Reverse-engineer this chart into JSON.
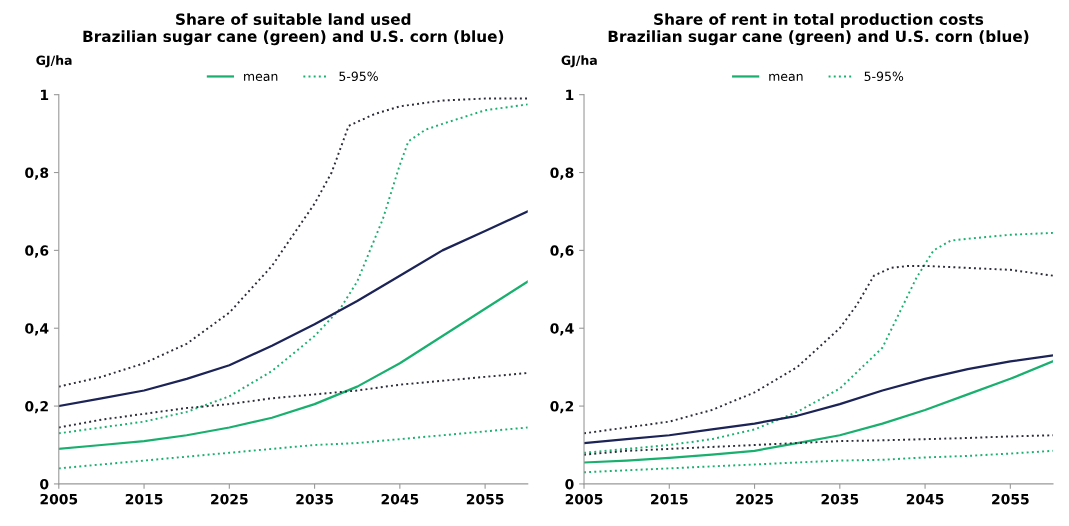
{
  "chart_data": [
    {
      "type": "line",
      "title": "Share of suitable land used\nBrazilian sugar cane (green) and U.S. corn (blue)",
      "ylabel": "GJ/ha",
      "xlim": [
        2005,
        2060
      ],
      "xticks": [
        2005,
        2015,
        2025,
        2035,
        2045,
        2055
      ],
      "ylim": [
        0,
        1
      ],
      "yticks": [
        0,
        {
          "value": 0.2,
          "label": "0,2"
        },
        {
          "value": 0.4,
          "label": "0,4"
        },
        {
          "value": 0.6,
          "label": "0,6"
        },
        {
          "value": 0.8,
          "label": "0,8"
        },
        1
      ],
      "grid": false,
      "legend": "top",
      "series": [
        {
          "name": "mean",
          "color": "#19b06f",
          "line_style": "solid",
          "x": [
            2005,
            2010,
            2015,
            2020,
            2025,
            2030,
            2035,
            2040,
            2045,
            2050,
            2055,
            2060
          ],
          "values": [
            0.09,
            0.1,
            0.11,
            0.125,
            0.145,
            0.17,
            0.205,
            0.25,
            0.31,
            0.38,
            0.45,
            0.52
          ]
        },
        {
          "name": "5-95%",
          "color": "#19b06f",
          "line_style": "dotted",
          "x": [
            2005,
            2010,
            2015,
            2020,
            2025,
            2030,
            2035,
            2038,
            2040,
            2043,
            2045,
            2046,
            2048,
            2050,
            2055,
            2060
          ],
          "values": [
            0.13,
            0.145,
            0.16,
            0.185,
            0.225,
            0.29,
            0.38,
            0.45,
            0.52,
            0.68,
            0.82,
            0.88,
            0.91,
            0.925,
            0.96,
            0.975
          ]
        },
        {
          "color": "#19b06f",
          "line_style": "dotted",
          "x": [
            2005,
            2010,
            2015,
            2020,
            2025,
            2030,
            2035,
            2040,
            2045,
            2050,
            2055,
            2060
          ],
          "values": [
            0.04,
            0.05,
            0.06,
            0.07,
            0.08,
            0.09,
            0.1,
            0.105,
            0.115,
            0.125,
            0.135,
            0.145
          ]
        },
        {
          "color": "#1c2457",
          "line_style": "solid",
          "x": [
            2005,
            2010,
            2015,
            2020,
            2025,
            2030,
            2035,
            2040,
            2045,
            2050,
            2055,
            2060
          ],
          "values": [
            0.2,
            0.22,
            0.24,
            0.27,
            0.305,
            0.355,
            0.41,
            0.47,
            0.535,
            0.6,
            0.65,
            0.7
          ]
        },
        {
          "color": "#2b2b3a",
          "line_style": "dotted",
          "x": [
            2005,
            2010,
            2015,
            2020,
            2025,
            2030,
            2035,
            2037,
            2039,
            2042,
            2045,
            2050,
            2055,
            2060
          ],
          "values": [
            0.25,
            0.275,
            0.31,
            0.36,
            0.44,
            0.56,
            0.72,
            0.8,
            0.92,
            0.95,
            0.97,
            0.985,
            0.99,
            0.99
          ]
        },
        {
          "color": "#2b2b3a",
          "line_style": "dotted",
          "x": [
            2005,
            2010,
            2015,
            2020,
            2025,
            2030,
            2035,
            2040,
            2045,
            2050,
            2055,
            2060
          ],
          "values": [
            0.145,
            0.165,
            0.18,
            0.195,
            0.205,
            0.22,
            0.23,
            0.24,
            0.255,
            0.265,
            0.275,
            0.285
          ]
        }
      ]
    },
    {
      "type": "line",
      "title": "Share of rent in total production costs\nBrazilian sugar cane (green) and U.S. corn (blue)",
      "ylabel": "GJ/ha",
      "xlim": [
        2005,
        2060
      ],
      "xticks": [
        2005,
        2015,
        2025,
        2035,
        2045,
        2055
      ],
      "ylim": [
        0,
        1
      ],
      "yticks": [
        0,
        {
          "value": 0.2,
          "label": "0,2"
        },
        {
          "value": 0.4,
          "label": "0,4"
        },
        {
          "value": 0.6,
          "label": "0,6"
        },
        {
          "value": 0.8,
          "label": "0,8"
        },
        1
      ],
      "grid": false,
      "legend": "top",
      "series": [
        {
          "name": "mean",
          "color": "#19b06f",
          "line_style": "solid",
          "x": [
            2005,
            2010,
            2015,
            2020,
            2025,
            2030,
            2035,
            2040,
            2045,
            2050,
            2055,
            2060
          ],
          "values": [
            0.055,
            0.06,
            0.067,
            0.075,
            0.085,
            0.105,
            0.125,
            0.155,
            0.19,
            0.23,
            0.27,
            0.315
          ]
        },
        {
          "name": "5-95%",
          "color": "#19b06f",
          "line_style": "dotted",
          "x": [
            2005,
            2010,
            2015,
            2020,
            2025,
            2030,
            2035,
            2040,
            2042,
            2044,
            2046,
            2048,
            2050,
            2055,
            2060
          ],
          "values": [
            0.08,
            0.09,
            0.1,
            0.115,
            0.14,
            0.185,
            0.245,
            0.35,
            0.44,
            0.53,
            0.6,
            0.625,
            0.63,
            0.64,
            0.645
          ]
        },
        {
          "color": "#19b06f",
          "line_style": "dotted",
          "x": [
            2005,
            2010,
            2015,
            2020,
            2025,
            2030,
            2035,
            2040,
            2045,
            2050,
            2055,
            2060
          ],
          "values": [
            0.03,
            0.035,
            0.04,
            0.045,
            0.05,
            0.055,
            0.06,
            0.062,
            0.068,
            0.072,
            0.078,
            0.085
          ]
        },
        {
          "color": "#1c2457",
          "line_style": "solid",
          "x": [
            2005,
            2010,
            2015,
            2020,
            2025,
            2030,
            2035,
            2040,
            2045,
            2050,
            2055,
            2060
          ],
          "values": [
            0.105,
            0.115,
            0.125,
            0.14,
            0.155,
            0.175,
            0.205,
            0.24,
            0.27,
            0.295,
            0.315,
            0.33
          ]
        },
        {
          "color": "#2b2b3a",
          "line_style": "dotted",
          "x": [
            2005,
            2010,
            2015,
            2020,
            2025,
            2030,
            2035,
            2037,
            2039,
            2041,
            2043,
            2045,
            2050,
            2055,
            2060
          ],
          "values": [
            0.13,
            0.145,
            0.16,
            0.19,
            0.235,
            0.3,
            0.4,
            0.46,
            0.535,
            0.555,
            0.56,
            0.56,
            0.555,
            0.55,
            0.535
          ]
        },
        {
          "color": "#2b2b3a",
          "line_style": "dotted",
          "x": [
            2005,
            2010,
            2015,
            2020,
            2025,
            2030,
            2035,
            2040,
            2045,
            2050,
            2055,
            2060
          ],
          "values": [
            0.075,
            0.085,
            0.09,
            0.095,
            0.1,
            0.105,
            0.11,
            0.112,
            0.115,
            0.118,
            0.122,
            0.125
          ]
        }
      ]
    }
  ]
}
